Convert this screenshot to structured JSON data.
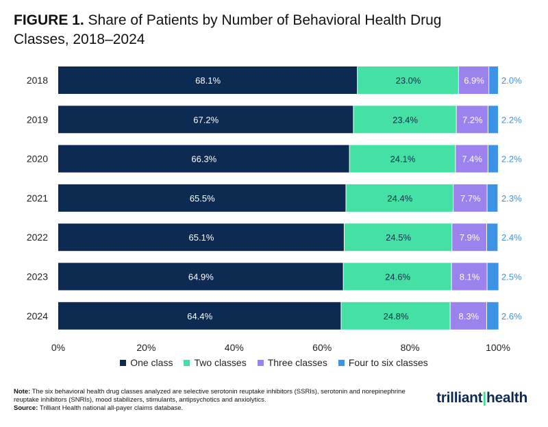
{
  "title": {
    "prefix": "FIGURE 1.",
    "text": "Share of Patients by Number of Behavioral Health Drug Classes, 2018–2024"
  },
  "notes": {
    "note_label": "Note:",
    "note_text": "The six behavioral health drug classes analyzed are selective serotonin reuptake inhibitors (SSRIs), serotonin and norepinephrine reuptake inhibitors (SNRIs), mood stabilizers, stimulants, antipsychotics and anxiolytics.",
    "source_label": "Source:",
    "source_text": "Trilliant Health national all-payer claims database."
  },
  "logo": {
    "left": "trilliant",
    "right": "health"
  },
  "colors": {
    "one": "#0d2a52",
    "two": "#45e0a3",
    "three": "#9b82ec",
    "four": "#3c93e6"
  },
  "chart_data": {
    "type": "bar",
    "orientation": "horizontal",
    "stacked": true,
    "categories": [
      "2018",
      "2019",
      "2020",
      "2021",
      "2022",
      "2023",
      "2024"
    ],
    "series": [
      {
        "name": "One class",
        "values": [
          68.1,
          67.2,
          66.3,
          65.5,
          65.1,
          64.9,
          64.4
        ]
      },
      {
        "name": "Two classes",
        "values": [
          23.0,
          23.4,
          24.1,
          24.4,
          24.5,
          24.6,
          24.8
        ]
      },
      {
        "name": "Three classes",
        "values": [
          6.9,
          7.2,
          7.4,
          7.7,
          7.9,
          8.1,
          8.3
        ]
      },
      {
        "name": "Four to six classes",
        "values": [
          2.0,
          2.2,
          2.2,
          2.3,
          2.4,
          2.5,
          2.6
        ]
      }
    ],
    "xticks": [
      "0%",
      "20%",
      "40%",
      "60%",
      "80%",
      "100%"
    ],
    "xlim": [
      0,
      100
    ],
    "legend_position": "bottom",
    "grid": false
  }
}
